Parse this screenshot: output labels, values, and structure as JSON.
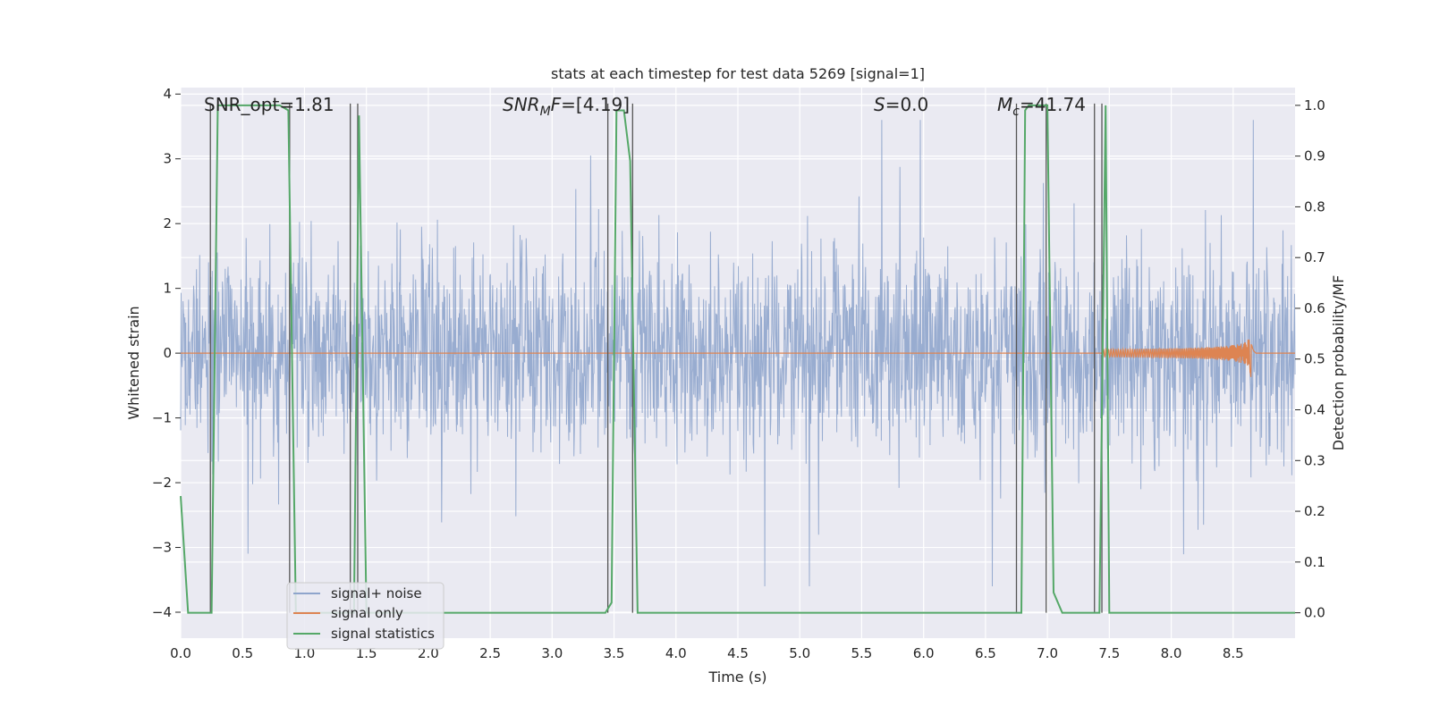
{
  "colors": {
    "background": "#eaeaf2",
    "grid": "#ffffff",
    "noise": "#8fa5cc",
    "signal": "#dd8452",
    "stats": "#55a868",
    "vline": "#555555"
  },
  "chart_data": {
    "type": "line",
    "title": "stats at each timestep for test data 5269 [signal=1]",
    "xlabel": "Time (s)",
    "ylabel": "Whitened strain",
    "y2label": "Detection probability/MF",
    "xlim": [
      0,
      9.0
    ],
    "ylim": [
      -4.4,
      4.1
    ],
    "y2lim": [
      -0.05,
      1.035
    ],
    "xticks": [
      "0.0",
      "0.5",
      "1.0",
      "1.5",
      "2.0",
      "2.5",
      "3.0",
      "3.5",
      "4.0",
      "4.5",
      "5.0",
      "5.5",
      "6.0",
      "6.5",
      "7.0",
      "7.5",
      "8.0",
      "8.5"
    ],
    "yticks": [
      "−4",
      "−3",
      "−2",
      "−1",
      "0",
      "1",
      "2",
      "3",
      "4"
    ],
    "y2ticks": [
      "0.0",
      "0.1",
      "0.2",
      "0.3",
      "0.4",
      "0.5",
      "0.6",
      "0.7",
      "0.8",
      "0.9",
      "1.0"
    ],
    "annotations": {
      "snr_opt": "SNR_opt=1.81",
      "snr_mf_italic": "SNR",
      "snr_mf_sub": "M",
      "snr_mf_f": "F",
      "snr_mf_value": "=[4.19]",
      "s_italic": "S",
      "s_value": "=0.0",
      "mc_italic": "M",
      "mc_sub": "c",
      "mc_value": "=41.74"
    },
    "legend": {
      "position": "lower-left",
      "entries": [
        "signal+ noise",
        "signal only",
        "signal statistics"
      ]
    },
    "series": [
      {
        "name": "signal+ noise",
        "axis": "left",
        "description": "whitened strain noise, envelope approx ±2",
        "amplitude_typical": 1.4,
        "amplitude_peak": 3.6
      },
      {
        "name": "signal only",
        "axis": "left",
        "description": "chirp ending near t=8.65 s",
        "peak_amplitude": 0.45,
        "merger_time": 8.65
      },
      {
        "name": "signal statistics",
        "axis": "right",
        "x": [
          0.0,
          0.06,
          0.25,
          0.3,
          0.35,
          0.8,
          0.87,
          0.93,
          1.4,
          1.44,
          1.5,
          1.55,
          1.6,
          3.4,
          3.43,
          3.48,
          3.52,
          3.58,
          3.63,
          3.69,
          3.75,
          3.82,
          3.88,
          4.0,
          6.4,
          6.48,
          6.75,
          6.79,
          6.82,
          6.85,
          7.0,
          7.05,
          7.12,
          7.35,
          7.42,
          7.47,
          7.5,
          7.54,
          7.58,
          9.0
        ],
        "values": [
          0.23,
          0.0,
          0.0,
          1.0,
          1.0,
          1.0,
          0.99,
          0.0,
          0.0,
          0.98,
          0.0,
          0.0,
          0.0,
          0.0,
          0.0,
          0.02,
          0.99,
          0.99,
          0.89,
          0.0,
          0.0,
          0.0,
          0.0,
          0.0,
          0.0,
          0.0,
          0.0,
          0.0,
          0.99,
          1.0,
          1.0,
          0.04,
          0.0,
          0.0,
          0.0,
          1.0,
          0.0,
          0.0,
          0.0,
          0.0
        ]
      }
    ],
    "vlines": [
      0.24,
      0.88,
      1.37,
      1.43,
      3.45,
      3.65,
      6.75,
      6.99,
      7.38,
      7.44
    ]
  }
}
